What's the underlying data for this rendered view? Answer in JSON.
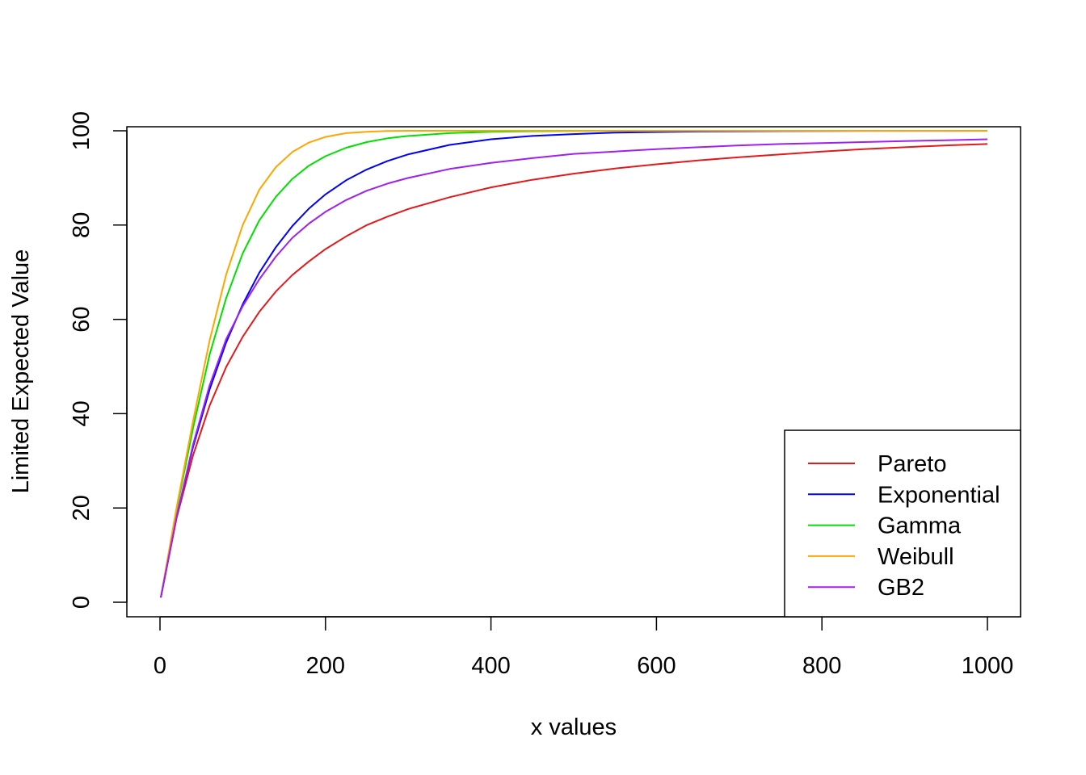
{
  "chart_data": {
    "type": "line",
    "title": "",
    "xlabel": "x values",
    "ylabel": "Limited Expected Value",
    "xlim": [
      0,
      1000
    ],
    "ylim": [
      0,
      100
    ],
    "xticks": [
      0,
      200,
      400,
      600,
      800,
      1000
    ],
    "yticks": [
      0,
      20,
      40,
      60,
      80,
      100
    ],
    "grid": false,
    "legend_position": "bottom-right",
    "x": [
      1,
      20,
      40,
      60,
      80,
      100,
      120,
      140,
      160,
      180,
      200,
      225,
      250,
      275,
      300,
      350,
      400,
      450,
      500,
      550,
      600,
      650,
      700,
      750,
      800,
      850,
      900,
      950,
      1000
    ],
    "series": [
      {
        "name": "Pareto",
        "color": "#e31a1c",
        "values": [
          1.0,
          17.8,
          31.2,
          41.7,
          49.9,
          56.3,
          61.6,
          65.9,
          69.4,
          72.3,
          74.9,
          77.6,
          80.0,
          81.8,
          83.4,
          85.9,
          88.0,
          89.6,
          90.9,
          92.0,
          92.9,
          93.7,
          94.4,
          95.0,
          95.6,
          96.1,
          96.5,
          96.9,
          97.2
        ]
      },
      {
        "name": "Exponential",
        "color": "#0000ff",
        "values": [
          1.0,
          18.1,
          33.0,
          45.1,
          55.1,
          63.2,
          69.9,
          75.3,
          79.8,
          83.5,
          86.5,
          89.5,
          91.8,
          93.6,
          95.0,
          97.0,
          98.2,
          98.9,
          99.3,
          99.6,
          99.75,
          99.85,
          99.9,
          99.94,
          99.96,
          99.98,
          99.99,
          99.99,
          100.0
        ]
      },
      {
        "name": "Gamma",
        "color": "#00e000",
        "values": [
          1.0,
          19.5,
          37.0,
          52.5,
          64.5,
          74.0,
          81.0,
          86.0,
          89.8,
          92.6,
          94.6,
          96.4,
          97.6,
          98.4,
          98.9,
          99.5,
          99.8,
          99.9,
          99.95,
          99.98,
          99.99,
          100.0,
          100.0,
          100.0,
          100.0,
          100.0,
          100.0,
          100.0,
          100.0
        ]
      },
      {
        "name": "Weibull",
        "color": "#ffa500",
        "values": [
          1.0,
          20.0,
          38.5,
          55.5,
          69.5,
          80.0,
          87.5,
          92.3,
          95.5,
          97.5,
          98.7,
          99.5,
          99.8,
          99.95,
          100.0,
          100.0,
          100.0,
          100.0,
          100.0,
          100.0,
          100.0,
          100.0,
          100.0,
          100.0,
          100.0,
          100.0,
          100.0,
          100.0,
          100.0
        ]
      },
      {
        "name": "GB2",
        "color": "#a020f0",
        "values": [
          1.0,
          18.0,
          33.5,
          46.0,
          55.8,
          62.8,
          68.5,
          73.3,
          77.3,
          80.3,
          82.8,
          85.3,
          87.3,
          88.8,
          90.0,
          91.9,
          93.2,
          94.2,
          95.1,
          95.6,
          96.1,
          96.5,
          96.9,
          97.2,
          97.4,
          97.6,
          97.8,
          98.0,
          98.2
        ]
      }
    ]
  }
}
